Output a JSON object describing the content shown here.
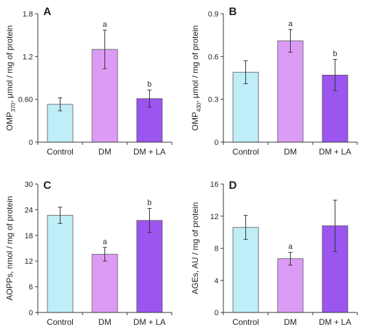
{
  "chart_data": [
    {
      "type": "bar",
      "panel": "A",
      "ylabel": {
        "main": "OMP",
        "sub": "370",
        "rest": ", μmol / mg of protein"
      },
      "categories": [
        "Control",
        "DM",
        "DM + LA"
      ],
      "values": [
        0.53,
        1.3,
        0.61
      ],
      "errors": [
        0.09,
        0.27,
        0.12
      ],
      "significance": [
        "",
        "a",
        "b"
      ],
      "ylim": [
        0,
        1.8
      ],
      "yticks": [
        "0",
        "0.60",
        "1.2",
        "1.8"
      ],
      "ytick_values": [
        0,
        0.6,
        1.2,
        1.8
      ]
    },
    {
      "type": "bar",
      "panel": "B",
      "ylabel": {
        "main": "OMP",
        "sub": "430",
        "rest": ", μmol / mg of protein"
      },
      "categories": [
        "Control",
        "DM",
        "DM + LA"
      ],
      "values": [
        0.49,
        0.71,
        0.47
      ],
      "errors": [
        0.08,
        0.08,
        0.11
      ],
      "significance": [
        "",
        "a",
        "b"
      ],
      "ylim": [
        0,
        0.9
      ],
      "yticks": [
        "0",
        "0.3",
        "0.6",
        "0.9"
      ],
      "ytick_values": [
        0,
        0.3,
        0.6,
        0.9
      ]
    },
    {
      "type": "bar",
      "panel": "C",
      "ylabel": {
        "main": "AOPPs, nmol / mg of protein",
        "sub": "",
        "rest": ""
      },
      "categories": [
        "Control",
        "DM",
        "DM + LA"
      ],
      "values": [
        22.7,
        13.6,
        21.5
      ],
      "errors": [
        1.9,
        1.6,
        2.8
      ],
      "significance": [
        "",
        "a",
        "b"
      ],
      "ylim": [
        0,
        30
      ],
      "yticks": [
        "0",
        "6",
        "12",
        "18",
        "24",
        "30"
      ],
      "ytick_values": [
        0,
        6,
        12,
        18,
        24,
        30
      ]
    },
    {
      "type": "bar",
      "panel": "D",
      "ylabel": {
        "main": "AGEs, AU / mg of protein",
        "sub": "",
        "rest": ""
      },
      "categories": [
        "Control",
        "DM",
        "DM + LA"
      ],
      "values": [
        10.6,
        6.7,
        10.8
      ],
      "errors": [
        1.5,
        0.8,
        3.2
      ],
      "significance": [
        "",
        "a",
        ""
      ],
      "ylim": [
        0,
        16
      ],
      "yticks": [
        "0",
        "4",
        "8",
        "12",
        "16"
      ],
      "ytick_values": [
        0,
        4,
        8,
        12,
        16
      ]
    }
  ],
  "colors": {
    "bars": [
      "#bfedf8",
      "#dc9cf6",
      "#9c55ee"
    ],
    "axis": "#333333",
    "error": "#333333"
  }
}
